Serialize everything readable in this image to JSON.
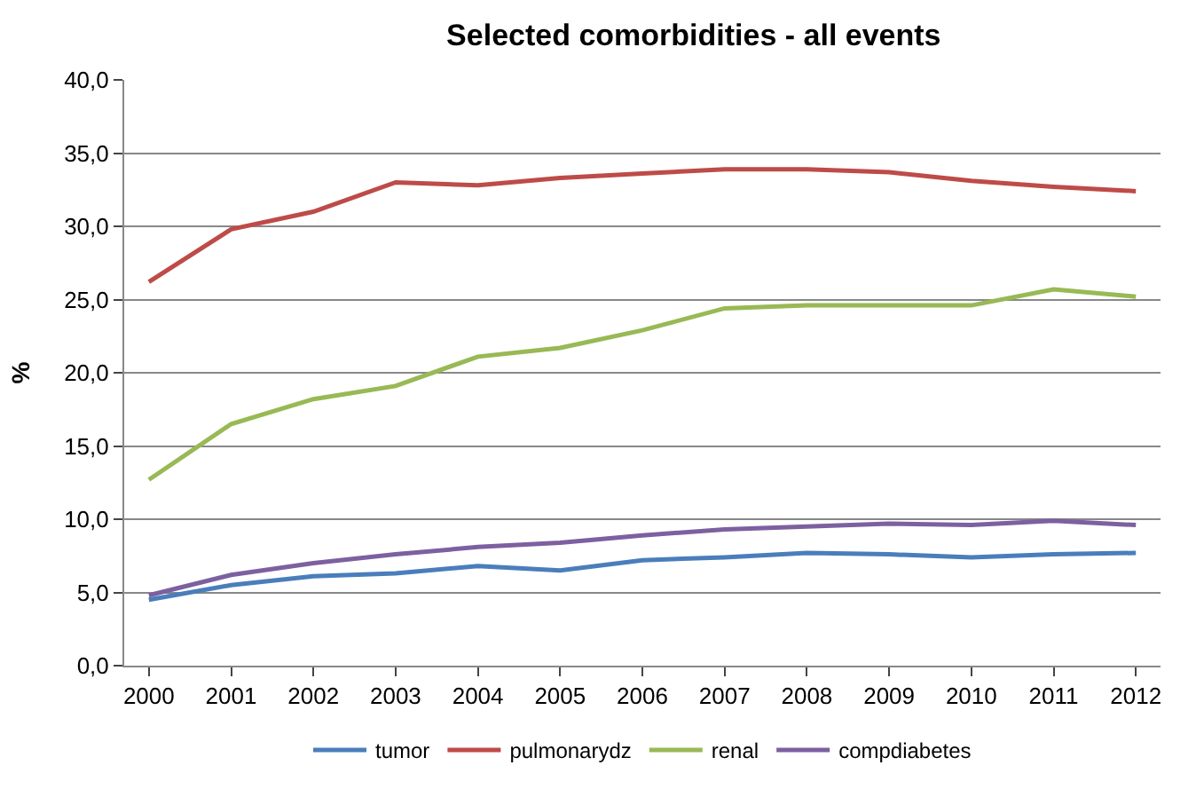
{
  "chart_data": {
    "type": "line",
    "title": "Selected comorbidities - all events",
    "ylabel": "%",
    "categories": [
      "2000",
      "2001",
      "2002",
      "2003",
      "2004",
      "2005",
      "2006",
      "2007",
      "2008",
      "2009",
      "2010",
      "2011",
      "2012"
    ],
    "series": [
      {
        "name": "tumor",
        "color": "#4a7ebb",
        "values": [
          4.5,
          5.5,
          6.1,
          6.3,
          6.8,
          6.5,
          7.2,
          7.4,
          7.7,
          7.6,
          7.4,
          7.6,
          7.7
        ]
      },
      {
        "name": "pulmonarydz",
        "color": "#be4b48",
        "values": [
          26.2,
          29.8,
          31.0,
          33.0,
          32.8,
          33.3,
          33.6,
          33.9,
          33.9,
          33.7,
          33.1,
          32.7,
          32.4
        ]
      },
      {
        "name": "renal",
        "color": "#98b954",
        "values": [
          12.7,
          16.5,
          18.2,
          19.1,
          21.1,
          21.7,
          22.9,
          24.4,
          24.6,
          24.6,
          24.6,
          25.7,
          25.2
        ]
      },
      {
        "name": "compdiabetes",
        "color": "#7d60a0",
        "values": [
          4.8,
          6.2,
          7.0,
          7.6,
          8.1,
          8.4,
          8.9,
          9.3,
          9.5,
          9.7,
          9.6,
          9.9,
          9.6
        ]
      }
    ],
    "ylim": [
      0,
      40
    ],
    "yticks": [
      {
        "value": 0,
        "label": "0,0"
      },
      {
        "value": 5,
        "label": "5,0"
      },
      {
        "value": 10,
        "label": "10,0"
      },
      {
        "value": 15,
        "label": "15,0"
      },
      {
        "value": 20,
        "label": "20,0"
      },
      {
        "value": 25,
        "label": "25,0"
      },
      {
        "value": 30,
        "label": "30,0"
      },
      {
        "value": 35,
        "label": "35,0"
      },
      {
        "value": 40,
        "label": "40,0"
      }
    ],
    "grid": "y",
    "legend": "bottom",
    "marker": "none",
    "line_style": "solid"
  }
}
